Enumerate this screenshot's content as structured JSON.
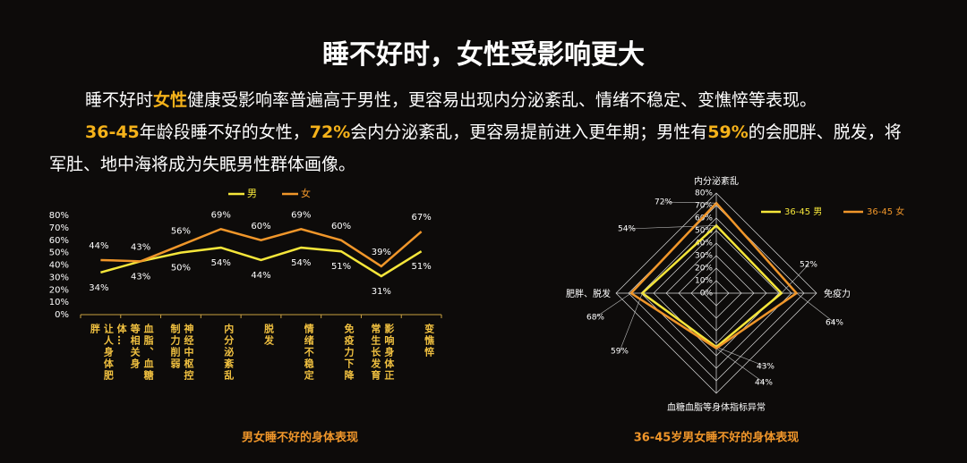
{
  "title": "睡不好时，女性受影响更大",
  "paragraphs": [
    {
      "segments": [
        {
          "text": "睡不好时"
        },
        {
          "text": "女性",
          "highlight": true
        },
        {
          "text": "健康受影响率普遍高于男性，更容易出现内分泌紊乱、情绪不稳定、变憔悴等表现。"
        }
      ]
    },
    {
      "segments": [
        {
          "text": "36-45",
          "highlight": true
        },
        {
          "text": "年龄段睡不好的女性，"
        },
        {
          "text": "72%",
          "highlight": true
        },
        {
          "text": "会内分泌紊乱，更容易提前进入更年期；男性有"
        },
        {
          "text": "59%",
          "highlight": true
        },
        {
          "text": "的会肥胖、脱发，将军肚、地中海将成为失眠男性群体画像。"
        }
      ]
    }
  ],
  "chart_data": [
    {
      "type": "line",
      "title": "男女睡不好的身体表现",
      "categories": [
        "让人身体肥胖",
        "血脂、血糖等相关身体…",
        "神经中枢控制力削弱",
        "内分泌紊乱",
        "脱发",
        "情绪不稳定",
        "免疫力下降",
        "影响身体正常生长发育",
        "变憔悴"
      ],
      "series": [
        {
          "name": "男",
          "color": "#f5e63a",
          "values": [
            34,
            43,
            50,
            54,
            44,
            54,
            51,
            31,
            51
          ],
          "value_labels": [
            "34%",
            "43%",
            "50%",
            "54%",
            "44%",
            "54%",
            "51%",
            "31%",
            "51%"
          ]
        },
        {
          "name": "女",
          "color": "#f0962a",
          "values": [
            44,
            43,
            56,
            69,
            60,
            69,
            60,
            39,
            67
          ],
          "value_labels": [
            "44%",
            "43%",
            "56%",
            "69%",
            "60%",
            "69%",
            "60%",
            "39%",
            "67%"
          ]
        }
      ],
      "ylim": [
        0,
        80
      ],
      "yticks": [
        {
          "value": 0,
          "label": "0%"
        },
        {
          "value": 10,
          "label": "10%"
        },
        {
          "value": 20,
          "label": "20%"
        },
        {
          "value": 30,
          "label": "30%"
        },
        {
          "value": 40,
          "label": "40%"
        },
        {
          "value": 50,
          "label": "50%"
        },
        {
          "value": 60,
          "label": "60%"
        },
        {
          "value": 70,
          "label": "70%"
        },
        {
          "value": 80,
          "label": "80%"
        }
      ],
      "legend": "top"
    },
    {
      "type": "radar",
      "title": "36-45岁男女睡不好的身体表现",
      "categories": [
        "内分泌紊乱",
        "免疫力",
        "血糖血脂等身体指标异常",
        "肥胖、脱发"
      ],
      "series": [
        {
          "name": "36-45 男",
          "color": "#f5e63a",
          "values": [
            54,
            52,
            43,
            59
          ],
          "value_labels": [
            "54%",
            "52%",
            "43%",
            "59%"
          ]
        },
        {
          "name": "36-45 女",
          "color": "#f0962a",
          "values": [
            72,
            64,
            44,
            68
          ],
          "value_labels": [
            "72%",
            "64%",
            "44%",
            "68%"
          ]
        }
      ],
      "ylim": [
        0,
        80
      ],
      "yticks": [
        {
          "value": 0,
          "label": "0%"
        },
        {
          "value": 10,
          "label": "10%"
        },
        {
          "value": 20,
          "label": "20%"
        },
        {
          "value": 30,
          "label": "30%"
        },
        {
          "value": 40,
          "label": "40%"
        },
        {
          "value": 50,
          "label": "50%"
        },
        {
          "value": 60,
          "label": "60%"
        },
        {
          "value": 70,
          "label": "70%"
        },
        {
          "value": 80,
          "label": "80%"
        }
      ],
      "legend": "top-right"
    }
  ]
}
